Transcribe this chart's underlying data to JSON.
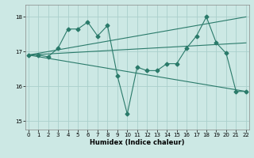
{
  "xlabel": "Humidex (Indice chaleur)",
  "bg_color": "#cce8e4",
  "grid_color": "#aacfcc",
  "line_color": "#2a7a6a",
  "line1_x": [
    0,
    1,
    2,
    3,
    4,
    5,
    6,
    7,
    8,
    9,
    10,
    11,
    12,
    13,
    14,
    15,
    16,
    17,
    18,
    19,
    20,
    21,
    22
  ],
  "line1_y": [
    16.9,
    16.9,
    16.85,
    17.1,
    17.65,
    17.65,
    17.85,
    17.45,
    17.75,
    16.3,
    15.2,
    16.55,
    16.45,
    16.45,
    16.65,
    16.65,
    17.1,
    17.45,
    18.0,
    17.25,
    16.95,
    15.85,
    15.85
  ],
  "line2_x": [
    0,
    22
  ],
  "line2_y": [
    16.9,
    18.0
  ],
  "line3_x": [
    0,
    22
  ],
  "line3_y": [
    16.9,
    17.25
  ],
  "line4_x": [
    0,
    22
  ],
  "line4_y": [
    16.9,
    15.85
  ],
  "ylim": [
    14.75,
    18.35
  ],
  "xlim": [
    -0.3,
    22.3
  ],
  "yticks": [
    15,
    16,
    17,
    18
  ],
  "xticks": [
    0,
    1,
    2,
    3,
    4,
    5,
    6,
    7,
    8,
    9,
    10,
    11,
    12,
    13,
    14,
    15,
    16,
    17,
    18,
    19,
    20,
    21,
    22
  ]
}
